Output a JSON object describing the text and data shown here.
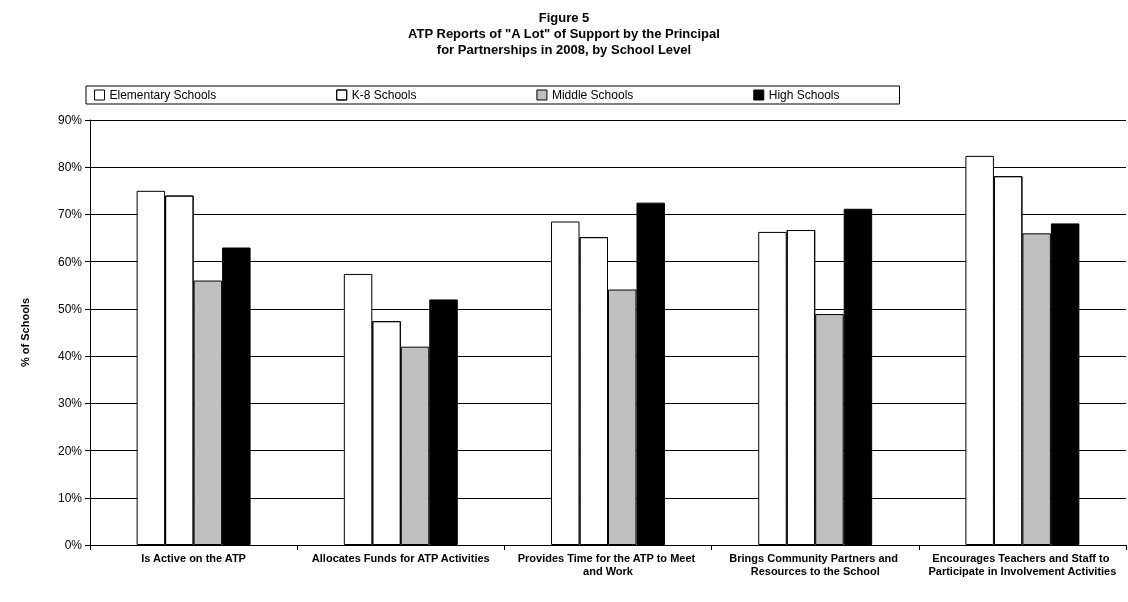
{
  "chart_data": {
    "type": "bar",
    "title": "Figure 5\nATP Reports of \"A Lot\" of Support by the Principal\nfor Partnerships in 2008, by School Level",
    "ylabel": "% of Schools",
    "categories": [
      "Is Active on the ATP",
      "Allocates Funds for ATP Activities",
      "Provides Time for the ATP to Meet and Work",
      "Brings Community Partners and Resources to the School",
      "Encourages Teachers and Staff to Participate in Involvement Activities"
    ],
    "series": [
      {
        "name": "Elementary Schools",
        "color": "#ffffff",
        "values": [
          75,
          57.4,
          68.5,
          66.3,
          82.4
        ]
      },
      {
        "name": "K-8 Schools",
        "color": "#ffffff",
        "values": [
          74,
          47.4,
          65.2,
          66.7,
          78.1
        ]
      },
      {
        "name": "Middle Schools",
        "color": "#c0c0c0",
        "values": [
          56,
          42,
          54.1,
          48.9,
          66
        ]
      },
      {
        "name": "High Schools",
        "color": "#000000",
        "values": [
          63,
          52,
          72.5,
          71.2,
          68.1
        ]
      }
    ],
    "ylim": [
      0,
      90
    ],
    "yticks": [
      {
        "value": 0,
        "label": "0%"
      },
      {
        "value": 10,
        "label": "10%"
      },
      {
        "value": 20,
        "label": "20%"
      },
      {
        "value": 30,
        "label": "30%"
      },
      {
        "value": 40,
        "label": "40%"
      },
      {
        "value": 50,
        "label": "50%"
      },
      {
        "value": 60,
        "label": "60%"
      },
      {
        "value": 70,
        "label": "70%"
      },
      {
        "value": 80,
        "label": "80%"
      },
      {
        "value": 90,
        "label": "90%"
      }
    ],
    "grid": "y",
    "legend": "top"
  }
}
